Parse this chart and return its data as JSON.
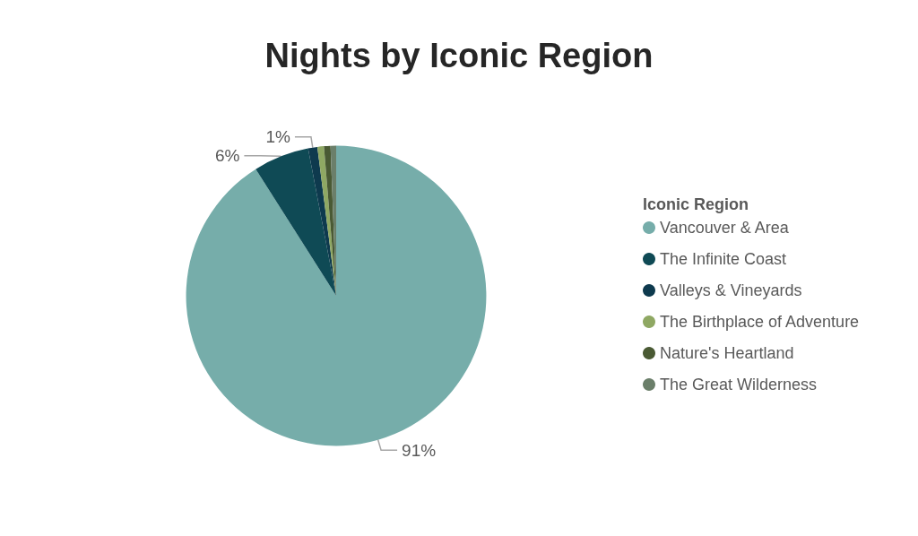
{
  "chart_data": {
    "type": "pie",
    "title": "Nights by Iconic Region",
    "legend_title": "Iconic Region",
    "categories": [
      "Vancouver & Area",
      "The Infinite Coast",
      "Valleys & Vineyards",
      "The Birthplace of Adventure",
      "Nature's Heartland",
      "The Great Wilderness"
    ],
    "values": [
      91,
      6,
      1,
      0.7,
      0.7,
      0.6
    ],
    "value_labels": [
      "91%",
      "6%",
      "1%",
      null,
      null,
      null
    ],
    "colors": [
      "#76adaa",
      "#0f4a55",
      "#0e3a4e",
      "#8fa863",
      "#4a5a34",
      "#6b7f6a"
    ],
    "legend": "right"
  }
}
